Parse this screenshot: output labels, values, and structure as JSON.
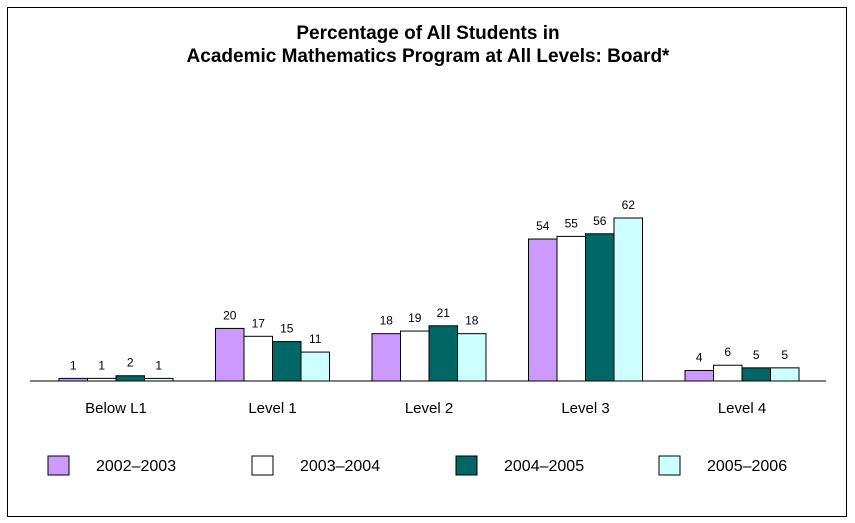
{
  "chart_data": {
    "type": "bar",
    "title": "Percentage of All Students in",
    "subtitle": "Academic Mathematics Program at All Levels: Board*",
    "xlabel": "",
    "ylabel": "",
    "categories": [
      "Below L1",
      "Level 1",
      "Level 2",
      "Level 3",
      "Level 4"
    ],
    "series": [
      {
        "name": "2002–2003",
        "color": "#cc99ff",
        "values": [
          1,
          20,
          18,
          54,
          4
        ]
      },
      {
        "name": "2003–2004",
        "color": "#ffffff",
        "values": [
          1,
          17,
          19,
          55,
          6
        ]
      },
      {
        "name": "2004–2005",
        "color": "#006666",
        "values": [
          2,
          15,
          21,
          56,
          5
        ]
      },
      {
        "name": "2005–2006",
        "color": "#ccffff",
        "values": [
          1,
          11,
          18,
          62,
          5
        ]
      }
    ],
    "ylim": [
      0,
      62
    ],
    "grid": false,
    "legend_position": "bottom"
  }
}
